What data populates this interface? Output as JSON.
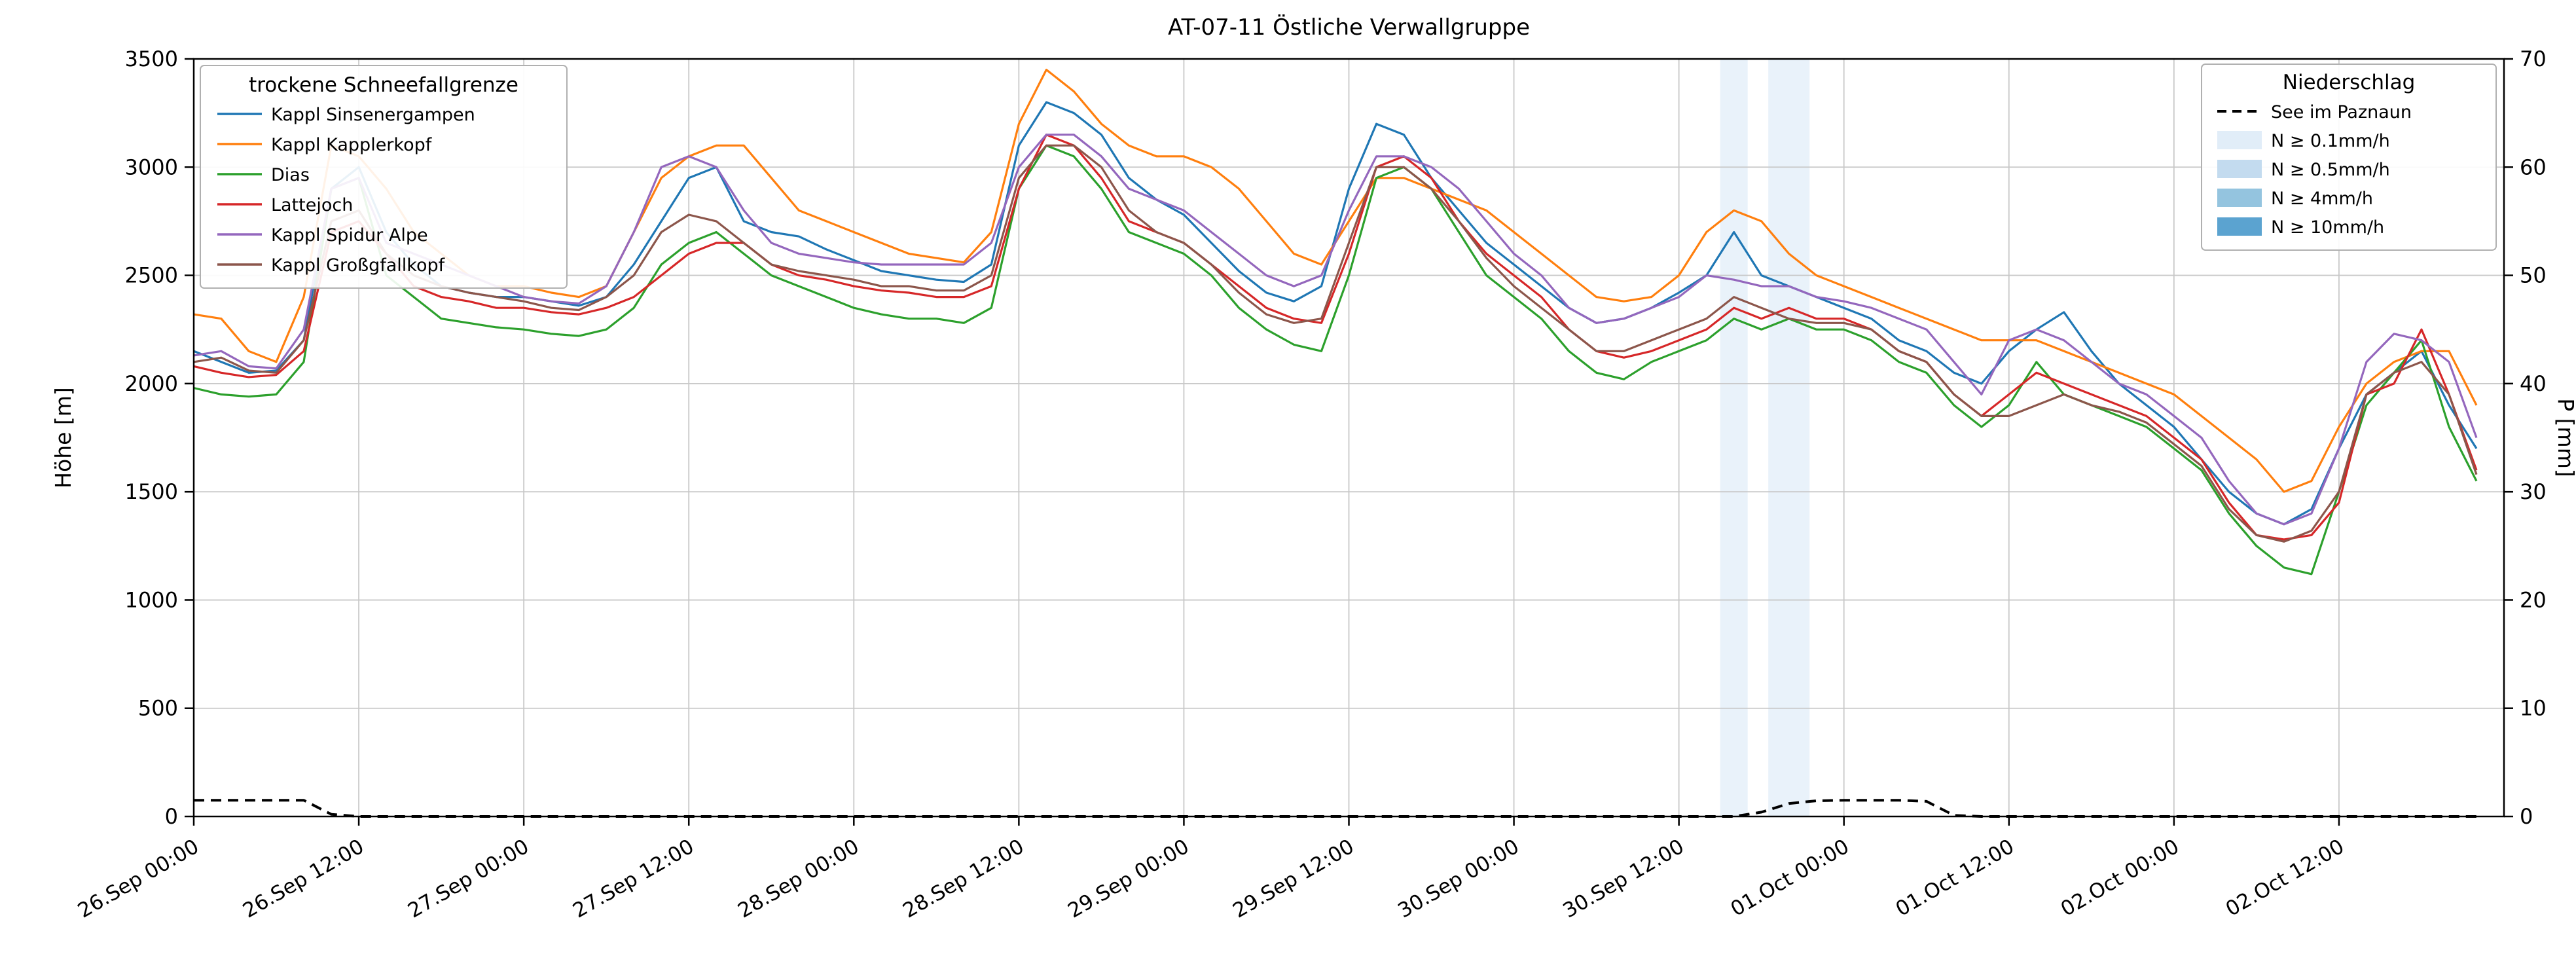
{
  "title": "AT-07-11 Östliche Verwallgruppe",
  "legend_lines": {
    "title": "trockene Schneefallgrenze",
    "items": [
      {
        "label": "Kappl Sinsenergampen",
        "color": "#1f77b4"
      },
      {
        "label": "Kappl Kapplerkopf",
        "color": "#ff7f0e"
      },
      {
        "label": "Dias",
        "color": "#2ca02c"
      },
      {
        "label": "Lattejoch",
        "color": "#d62728"
      },
      {
        "label": "Kappl Spidur Alpe",
        "color": "#9467bd"
      },
      {
        "label": "Kappl Großgfallkopf",
        "color": "#8c564b"
      }
    ]
  },
  "legend_precip": {
    "title": "Niederschlag",
    "dashed_label": "See im Paznaun",
    "levels": [
      {
        "label": "N ≥ 0.1mm/h",
        "color": "#e1edf8"
      },
      {
        "label": "N ≥ 0.5mm/h",
        "color": "#c3dbef"
      },
      {
        "label": "N ≥ 4mm/h",
        "color": "#94c4df"
      },
      {
        "label": "N ≥ 10mm/h",
        "color": "#5ba3d0"
      }
    ]
  },
  "chart_data": {
    "type": "line",
    "title": "AT-07-11 Östliche Verwallgruppe",
    "ylabel_left": "Höhe [m]",
    "ylabel_right": "P [mm]",
    "ylim_left": [
      0,
      3500
    ],
    "yticks_left": [
      0,
      500,
      1000,
      1500,
      2000,
      2500,
      3000,
      3500
    ],
    "ylim_right": [
      0,
      70
    ],
    "yticks_right": [
      0,
      10,
      20,
      30,
      40,
      50,
      60,
      70
    ],
    "x_range_hours": [
      0,
      168
    ],
    "x_hours_step": 2,
    "x_tick_hours": [
      0,
      12,
      24,
      36,
      48,
      60,
      72,
      84,
      96,
      108,
      120,
      132,
      144,
      156
    ],
    "x_tick_labels": [
      "26.Sep 00:00",
      "26.Sep 12:00",
      "27.Sep 00:00",
      "27.Sep 12:00",
      "28.Sep 00:00",
      "28.Sep 12:00",
      "29.Sep 00:00",
      "29.Sep 12:00",
      "30.Sep 00:00",
      "30.Sep 12:00",
      "01.Oct 00:00",
      "01.Oct 12:00",
      "02.Oct 00:00",
      "02.Oct 12:00"
    ],
    "grid": true,
    "series": [
      {
        "name": "Kappl Sinsenergampen",
        "color": "#1f77b4",
        "axis": "left",
        "values": [
          2150,
          2100,
          2050,
          2060,
          2200,
          2900,
          3000,
          2700,
          2550,
          2450,
          2420,
          2400,
          2400,
          2380,
          2360,
          2400,
          2550,
          2750,
          2950,
          3000,
          2750,
          2700,
          2680,
          2620,
          2570,
          2520,
          2500,
          2480,
          2470,
          2550,
          3100,
          3300,
          3250,
          3150,
          2950,
          2850,
          2780,
          2650,
          2520,
          2420,
          2380,
          2450,
          2900,
          3200,
          3150,
          2950,
          2800,
          2650,
          2550,
          2450,
          2350,
          2280,
          2300,
          2350,
          2420,
          2500,
          2700,
          2500,
          2450,
          2400,
          2350,
          2300,
          2200,
          2150,
          2050,
          2000,
          2150,
          2250,
          2330,
          2150,
          2000,
          1900,
          1800,
          1650,
          1500,
          1400,
          1350,
          1420,
          1700,
          1950,
          2050,
          2150,
          1900,
          1700
        ]
      },
      {
        "name": "Kappl Kapplerkopf",
        "color": "#ff7f0e",
        "axis": "left",
        "values": [
          2320,
          2300,
          2150,
          2100,
          2400,
          3100,
          3050,
          2900,
          2700,
          2600,
          2500,
          2450,
          2450,
          2420,
          2400,
          2450,
          2700,
          2950,
          3050,
          3100,
          3100,
          2950,
          2800,
          2750,
          2700,
          2650,
          2600,
          2580,
          2560,
          2700,
          3200,
          3450,
          3350,
          3200,
          3100,
          3050,
          3050,
          3000,
          2900,
          2750,
          2600,
          2550,
          2750,
          2950,
          2950,
          2900,
          2850,
          2800,
          2700,
          2600,
          2500,
          2400,
          2380,
          2400,
          2500,
          2700,
          2800,
          2750,
          2600,
          2500,
          2450,
          2400,
          2350,
          2300,
          2250,
          2200,
          2200,
          2200,
          2150,
          2100,
          2050,
          2000,
          1950,
          1850,
          1750,
          1650,
          1500,
          1550,
          1800,
          2000,
          2100,
          2150,
          2150,
          1900
        ]
      },
      {
        "name": "Dias",
        "color": "#2ca02c",
        "axis": "left",
        "values": [
          1980,
          1950,
          1940,
          1950,
          2100,
          2900,
          2950,
          2500,
          2400,
          2300,
          2280,
          2260,
          2250,
          2230,
          2220,
          2250,
          2350,
          2550,
          2650,
          2700,
          2600,
          2500,
          2450,
          2400,
          2350,
          2320,
          2300,
          2300,
          2280,
          2350,
          2900,
          3100,
          3050,
          2900,
          2700,
          2650,
          2600,
          2500,
          2350,
          2250,
          2180,
          2150,
          2500,
          2950,
          3000,
          2900,
          2700,
          2500,
          2400,
          2300,
          2150,
          2050,
          2020,
          2100,
          2150,
          2200,
          2300,
          2250,
          2300,
          2250,
          2250,
          2200,
          2100,
          2050,
          1900,
          1800,
          1900,
          2100,
          1950,
          1900,
          1850,
          1800,
          1700,
          1600,
          1400,
          1250,
          1150,
          1120,
          1500,
          1900,
          2050,
          2200,
          1800,
          1550
        ]
      },
      {
        "name": "Lattejoch",
        "color": "#d62728",
        "axis": "left",
        "values": [
          2080,
          2050,
          2030,
          2040,
          2150,
          2700,
          2750,
          2600,
          2450,
          2400,
          2380,
          2350,
          2350,
          2330,
          2320,
          2350,
          2400,
          2500,
          2600,
          2650,
          2650,
          2550,
          2500,
          2480,
          2450,
          2430,
          2420,
          2400,
          2400,
          2450,
          2900,
          3150,
          3100,
          2950,
          2750,
          2700,
          2650,
          2550,
          2450,
          2350,
          2300,
          2280,
          2600,
          3000,
          3050,
          2950,
          2750,
          2600,
          2500,
          2400,
          2250,
          2150,
          2120,
          2150,
          2200,
          2250,
          2350,
          2300,
          2350,
          2300,
          2300,
          2250,
          2150,
          2100,
          1950,
          1850,
          1950,
          2050,
          2000,
          1950,
          1900,
          1850,
          1750,
          1650,
          1450,
          1300,
          1280,
          1300,
          1450,
          1950,
          2000,
          2250,
          1950,
          1600
        ]
      },
      {
        "name": "Kappl Spidur Alpe",
        "color": "#9467bd",
        "axis": "left",
        "values": [
          2130,
          2150,
          2080,
          2070,
          2250,
          2900,
          2950,
          2650,
          2600,
          2550,
          2500,
          2450,
          2400,
          2380,
          2370,
          2450,
          2700,
          3000,
          3050,
          3000,
          2800,
          2650,
          2600,
          2580,
          2560,
          2550,
          2550,
          2550,
          2550,
          2650,
          3000,
          3150,
          3150,
          3050,
          2900,
          2850,
          2800,
          2700,
          2600,
          2500,
          2450,
          2500,
          2800,
          3050,
          3050,
          3000,
          2900,
          2750,
          2600,
          2500,
          2350,
          2280,
          2300,
          2350,
          2400,
          2500,
          2480,
          2450,
          2450,
          2400,
          2380,
          2350,
          2300,
          2250,
          2100,
          1950,
          2200,
          2250,
          2200,
          2100,
          2000,
          1950,
          1850,
          1750,
          1550,
          1400,
          1350,
          1400,
          1700,
          2100,
          2230,
          2200,
          2100,
          1750
        ]
      },
      {
        "name": "Kappl Großgfallkopf",
        "color": "#8c564b",
        "axis": "left",
        "values": [
          2100,
          2120,
          2060,
          2050,
          2200,
          2750,
          2800,
          2600,
          2500,
          2450,
          2420,
          2400,
          2380,
          2350,
          2340,
          2400,
          2500,
          2700,
          2780,
          2750,
          2650,
          2550,
          2520,
          2500,
          2480,
          2450,
          2450,
          2430,
          2430,
          2500,
          2950,
          3100,
          3100,
          3000,
          2800,
          2700,
          2650,
          2550,
          2420,
          2320,
          2280,
          2300,
          2650,
          3000,
          3000,
          2900,
          2750,
          2580,
          2450,
          2350,
          2250,
          2150,
          2150,
          2200,
          2250,
          2300,
          2400,
          2350,
          2300,
          2280,
          2280,
          2250,
          2150,
          2100,
          1950,
          1850,
          1850,
          1900,
          1950,
          1900,
          1870,
          1820,
          1720,
          1620,
          1420,
          1300,
          1270,
          1320,
          1500,
          1950,
          2050,
          2100,
          1950,
          1580
        ]
      }
    ],
    "precip_line": {
      "name": "See im Paznaun",
      "color": "#000000",
      "axis": "right",
      "style": "dashed",
      "values": [
        1.5,
        1.5,
        1.5,
        1.5,
        1.5,
        0.2,
        0,
        0,
        0,
        0,
        0,
        0,
        0,
        0,
        0,
        0,
        0,
        0,
        0,
        0,
        0,
        0,
        0,
        0,
        0,
        0,
        0,
        0,
        0,
        0,
        0,
        0,
        0,
        0,
        0,
        0,
        0,
        0,
        0,
        0,
        0,
        0,
        0,
        0,
        0,
        0,
        0,
        0,
        0,
        0,
        0,
        0,
        0,
        0,
        0,
        0,
        0,
        0.4,
        1.2,
        1.45,
        1.5,
        1.5,
        1.5,
        1.4,
        0.1,
        0,
        0,
        0,
        0,
        0,
        0,
        0,
        0,
        0,
        0,
        0,
        0,
        0,
        0,
        0,
        0,
        0,
        0,
        0
      ]
    },
    "precip_bands": [
      {
        "start_hour": 111,
        "end_hour": 113,
        "level": "N ≥ 0.1mm/h",
        "color": "#e1edf8"
      },
      {
        "start_hour": 114.5,
        "end_hour": 117.5,
        "level": "N ≥ 0.1mm/h",
        "color": "#e1edf8"
      }
    ]
  }
}
